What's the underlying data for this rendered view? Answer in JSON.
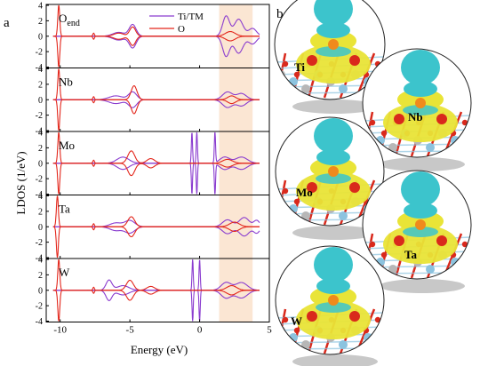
{
  "panel_labels": {
    "a": "a",
    "b": "b"
  },
  "colors": {
    "tm": "#8a3ccf",
    "o": "#e3261b",
    "highlight": "#fbe6d3",
    "iso_cyan": "#3cc4cc",
    "iso_yellow": "#e9e437",
    "atom_o": "#d9291c",
    "atom_tm": "#8cc3df",
    "atom_ti": "#b7b7b7"
  },
  "legend": {
    "tm_label": "Ti/TM",
    "o_label": "O"
  },
  "panel_b_labels": [
    "Ti",
    "Nb",
    "Mo",
    "Ta",
    "W"
  ],
  "chart_data": {
    "type": "line",
    "xlabel": "Energy (eV)",
    "ylabel": "LDOS (1/eV)",
    "xlim": [
      -11,
      5
    ],
    "xticks": [
      -10,
      -5,
      0,
      5
    ],
    "ylim": [
      -4,
      4
    ],
    "yticks": [
      4,
      2,
      0,
      -2,
      -4
    ],
    "highlight_region_x": [
      1.4,
      3.8
    ],
    "legend_position": "top-right of first subplot",
    "subplots": [
      {
        "label": "O",
        "label_sub": "end",
        "series": [
          {
            "name": "Ti/TM",
            "peaks": [
              {
                "x": -4.8,
                "amp": 1.5,
                "width": 0.35
              },
              {
                "x": -5.8,
                "amp": 0.5,
                "width": 0.6
              },
              {
                "x": 1.9,
                "amp": 2.6,
                "width": 0.35
              },
              {
                "x": 2.8,
                "amp": 2.2,
                "width": 0.45
              },
              {
                "x": 3.8,
                "amp": 1.0,
                "width": 0.4
              }
            ]
          },
          {
            "name": "O",
            "peaks": [
              {
                "x": -10.1,
                "amp": 4.0,
                "width": 0.1
              },
              {
                "x": -7.6,
                "amp": 0.4,
                "width": 0.08
              },
              {
                "x": -4.8,
                "amp": 1.2,
                "width": 0.3
              },
              {
                "x": -5.8,
                "amp": 0.4,
                "width": 0.5
              },
              {
                "x": 2.2,
                "amp": 0.6,
                "width": 0.5
              }
            ]
          }
        ]
      },
      {
        "label": "Nb",
        "label_sub": "",
        "series": [
          {
            "name": "Ti/TM",
            "peaks": [
              {
                "x": -4.8,
                "amp": 1.0,
                "width": 0.4
              },
              {
                "x": -6.0,
                "amp": 0.5,
                "width": 0.7
              },
              {
                "x": 2.0,
                "amp": 1.0,
                "width": 0.5
              },
              {
                "x": 3.0,
                "amp": 0.8,
                "width": 0.5
              }
            ]
          },
          {
            "name": "O",
            "peaks": [
              {
                "x": -10.1,
                "amp": 4.0,
                "width": 0.1
              },
              {
                "x": -7.6,
                "amp": 0.4,
                "width": 0.08
              },
              {
                "x": -4.7,
                "amp": 1.8,
                "width": 0.3
              },
              {
                "x": 2.3,
                "amp": 0.5,
                "width": 0.4
              }
            ]
          }
        ]
      },
      {
        "label": "Mo",
        "label_sub": "",
        "series": [
          {
            "name": "Ti/TM",
            "peaks": [
              {
                "x": -0.55,
                "amp": 4.0,
                "width": 0.06
              },
              {
                "x": -0.2,
                "amp": 4.0,
                "width": 0.06
              },
              {
                "x": 1.1,
                "amp": 4.0,
                "width": 0.06
              },
              {
                "x": -5.5,
                "amp": 0.8,
                "width": 0.6
              },
              {
                "x": 1.8,
                "amp": 0.8,
                "width": 0.5
              },
              {
                "x": 3.0,
                "amp": 0.8,
                "width": 0.6
              }
            ]
          },
          {
            "name": "O",
            "peaks": [
              {
                "x": -10.1,
                "amp": 4.0,
                "width": 0.1
              },
              {
                "x": -7.6,
                "amp": 0.4,
                "width": 0.08
              },
              {
                "x": -4.9,
                "amp": 1.6,
                "width": 0.35
              },
              {
                "x": -3.5,
                "amp": 0.6,
                "width": 0.4
              },
              {
                "x": 2.0,
                "amp": 0.5,
                "width": 0.5
              }
            ]
          }
        ]
      },
      {
        "label": "Ta",
        "label_sub": "",
        "series": [
          {
            "name": "Ti/TM",
            "peaks": [
              {
                "x": -5.0,
                "amp": 0.8,
                "width": 0.5
              },
              {
                "x": -6.0,
                "amp": 0.5,
                "width": 0.6
              },
              {
                "x": 2.0,
                "amp": 0.9,
                "width": 0.5
              },
              {
                "x": 3.2,
                "amp": 1.2,
                "width": 0.5
              },
              {
                "x": 4.1,
                "amp": 0.8,
                "width": 0.3
              }
            ]
          },
          {
            "name": "O",
            "peaks": [
              {
                "x": -10.2,
                "amp": 4.0,
                "width": 0.1
              },
              {
                "x": -7.6,
                "amp": 0.4,
                "width": 0.08
              },
              {
                "x": -4.9,
                "amp": 1.3,
                "width": 0.35
              },
              {
                "x": 2.5,
                "amp": 0.6,
                "width": 0.5
              }
            ]
          }
        ]
      },
      {
        "label": "W",
        "label_sub": "",
        "series": [
          {
            "name": "Ti/TM",
            "peaks": [
              {
                "x": -0.5,
                "amp": 4.0,
                "width": 0.06
              },
              {
                "x": 0.0,
                "amp": 4.0,
                "width": 0.06
              },
              {
                "x": -6.5,
                "amp": 1.3,
                "width": 0.3
              },
              {
                "x": -5.5,
                "amp": 0.6,
                "width": 0.6
              },
              {
                "x": 1.9,
                "amp": 1.0,
                "width": 0.5
              },
              {
                "x": 3.0,
                "amp": 1.0,
                "width": 0.6
              }
            ]
          },
          {
            "name": "O",
            "peaks": [
              {
                "x": -10.1,
                "amp": 4.0,
                "width": 0.1
              },
              {
                "x": -7.6,
                "amp": 0.4,
                "width": 0.08
              },
              {
                "x": -5.0,
                "amp": 1.3,
                "width": 0.35
              },
              {
                "x": -3.5,
                "amp": 0.5,
                "width": 0.4
              },
              {
                "x": 2.3,
                "amp": 0.6,
                "width": 0.5
              }
            ]
          }
        ]
      }
    ]
  }
}
